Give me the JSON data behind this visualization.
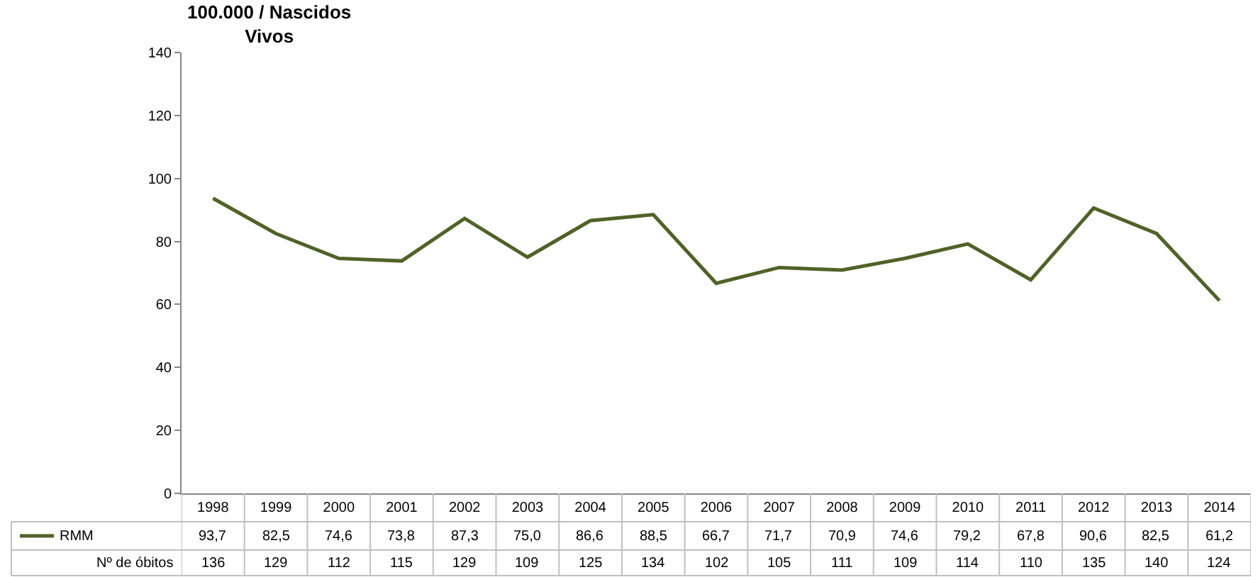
{
  "chart_data": {
    "type": "line",
    "ylabel": "100.000 / Nascidos Vivos",
    "categories": [
      "1998",
      "1999",
      "2000",
      "2001",
      "2002",
      "2003",
      "2004",
      "2005",
      "2006",
      "2007",
      "2008",
      "2009",
      "2010",
      "2011",
      "2012",
      "2013",
      "2014"
    ],
    "series": [
      {
        "name": "RMM",
        "color": "#4f6228",
        "values": [
          93.7,
          82.5,
          74.6,
          73.8,
          87.3,
          75.0,
          86.6,
          88.5,
          66.7,
          71.7,
          70.9,
          74.6,
          79.2,
          67.8,
          90.6,
          82.5,
          61.2
        ],
        "value_labels": [
          "93,7",
          "82,5",
          "74,6",
          "73,8",
          "87,3",
          "75,0",
          "86,6",
          "88,5",
          "66,7",
          "71,7",
          "70,9",
          "74,6",
          "79,2",
          "67,8",
          "90,6",
          "82,5",
          "61,2"
        ]
      }
    ],
    "annotations": [
      "Nº de óbitos",
      "136",
      "129",
      "112",
      "115",
      "129",
      "109",
      "125",
      "134",
      "102",
      "105",
      "111",
      "109",
      "114",
      "110",
      "135",
      "140",
      "124"
    ],
    "ylim": [
      0,
      140
    ],
    "yticks": [
      0,
      20,
      40,
      60,
      80,
      100,
      120,
      140
    ],
    "grid": false,
    "marker": "none",
    "line_style": "solid",
    "data_labels": true
  }
}
